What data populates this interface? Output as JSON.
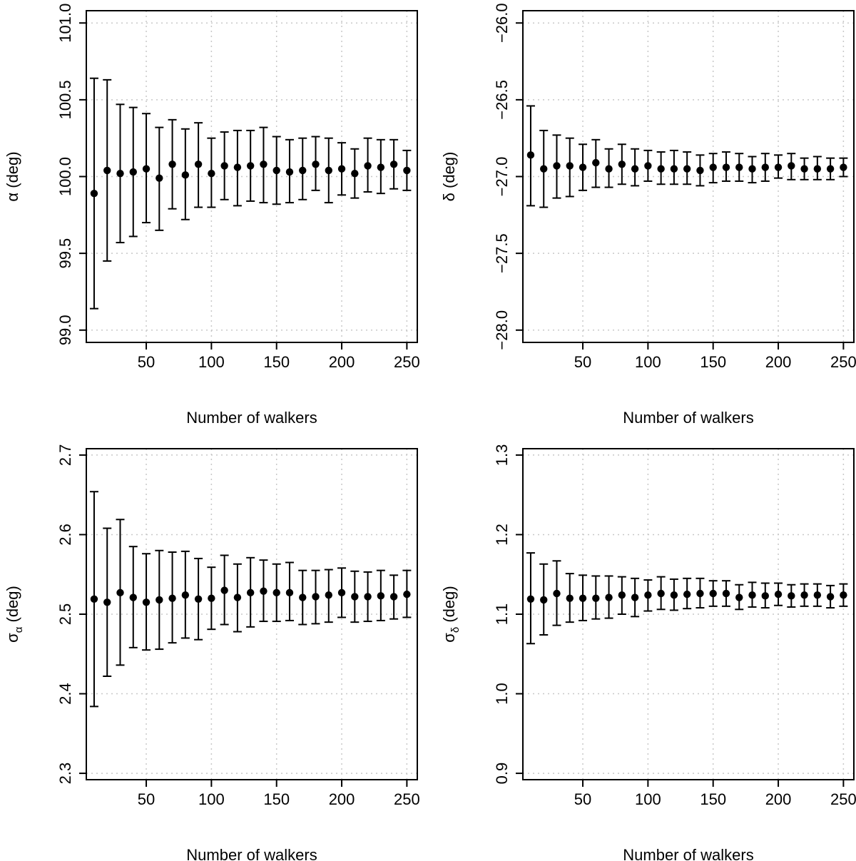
{
  "chart_data": [
    {
      "type": "scatter",
      "panel": "top-left",
      "xlabel": "Number of walkers",
      "ylabel": "α (deg)",
      "ylabel_symbol": "α",
      "ylabel_sub": "",
      "ylabel_unit": " (deg)",
      "xlim": [
        4,
        258
      ],
      "ylim": [
        98.92,
        101.08
      ],
      "xticks": [
        50,
        100,
        150,
        200,
        250
      ],
      "xtick_labels": [
        "50",
        "100",
        "150",
        "200",
        "250"
      ],
      "yticks": [
        99.0,
        99.5,
        100.0,
        100.5,
        101.0
      ],
      "ytick_labels": [
        "99.0",
        "99.5",
        "100.0",
        "100.5",
        "101.0"
      ],
      "grid": true,
      "x": [
        10,
        20,
        30,
        40,
        50,
        60,
        70,
        80,
        90,
        100,
        110,
        120,
        130,
        140,
        150,
        160,
        170,
        180,
        190,
        200,
        210,
        220,
        230,
        240,
        250
      ],
      "y": [
        99.89,
        100.04,
        100.02,
        100.03,
        100.05,
        99.99,
        100.08,
        100.01,
        100.08,
        100.02,
        100.07,
        100.06,
        100.07,
        100.08,
        100.04,
        100.03,
        100.04,
        100.08,
        100.04,
        100.05,
        100.02,
        100.07,
        100.06,
        100.08,
        100.04
      ],
      "y_lower": [
        99.14,
        99.45,
        99.57,
        99.61,
        99.7,
        99.65,
        99.79,
        99.72,
        99.8,
        99.8,
        99.85,
        99.81,
        99.84,
        99.83,
        99.82,
        99.83,
        99.85,
        99.91,
        99.83,
        99.88,
        99.86,
        99.9,
        99.89,
        99.92,
        99.91
      ],
      "y_upper": [
        100.64,
        100.63,
        100.47,
        100.45,
        100.41,
        100.32,
        100.37,
        100.31,
        100.35,
        100.25,
        100.29,
        100.3,
        100.3,
        100.32,
        100.26,
        100.24,
        100.25,
        100.26,
        100.25,
        100.22,
        100.18,
        100.25,
        100.24,
        100.24,
        100.17
      ]
    },
    {
      "type": "scatter",
      "panel": "top-right",
      "xlabel": "Number of walkers",
      "ylabel": "δ (deg)",
      "ylabel_symbol": "δ",
      "ylabel_sub": "",
      "ylabel_unit": " (deg)",
      "xlim": [
        4,
        258
      ],
      "ylim": [
        -28.08,
        -25.92
      ],
      "xticks": [
        50,
        100,
        150,
        200,
        250
      ],
      "xtick_labels": [
        "50",
        "100",
        "150",
        "200",
        "250"
      ],
      "yticks": [
        -28.0,
        -27.5,
        -27.0,
        -26.5,
        -26.0
      ],
      "ytick_labels": [
        "−28.0",
        "−27.5",
        "−27.0",
        "−26.5",
        "−26.0"
      ],
      "grid": true,
      "x": [
        10,
        20,
        30,
        40,
        50,
        60,
        70,
        80,
        90,
        100,
        110,
        120,
        130,
        140,
        150,
        160,
        170,
        180,
        190,
        200,
        210,
        220,
        230,
        240,
        250
      ],
      "y": [
        -26.86,
        -26.95,
        -26.93,
        -26.93,
        -26.94,
        -26.91,
        -26.95,
        -26.92,
        -26.95,
        -26.93,
        -26.95,
        -26.95,
        -26.95,
        -26.96,
        -26.94,
        -26.94,
        -26.94,
        -26.95,
        -26.94,
        -26.94,
        -26.93,
        -26.95,
        -26.95,
        -26.95,
        -26.94
      ],
      "y_lower": [
        -27.19,
        -27.2,
        -27.14,
        -27.13,
        -27.09,
        -27.07,
        -27.07,
        -27.05,
        -27.06,
        -27.03,
        -27.05,
        -27.05,
        -27.05,
        -27.06,
        -27.04,
        -27.03,
        -27.03,
        -27.04,
        -27.03,
        -27.01,
        -27.02,
        -27.02,
        -27.02,
        -27.02,
        -27.0
      ],
      "y_upper": [
        -26.54,
        -26.7,
        -26.73,
        -26.75,
        -26.79,
        -26.76,
        -26.82,
        -26.79,
        -26.82,
        -26.83,
        -26.84,
        -26.83,
        -26.84,
        -26.86,
        -26.85,
        -26.84,
        -26.85,
        -26.87,
        -26.85,
        -26.86,
        -26.85,
        -26.88,
        -26.87,
        -26.88,
        -26.88
      ]
    },
    {
      "type": "scatter",
      "panel": "bottom-left",
      "xlabel": "Number of walkers",
      "ylabel": "σα (deg)",
      "ylabel_symbol": "σ",
      "ylabel_sub": "α",
      "ylabel_unit": " (deg)",
      "xlim": [
        4,
        258
      ],
      "ylim": [
        2.292,
        2.708
      ],
      "xticks": [
        50,
        100,
        150,
        200,
        250
      ],
      "xtick_labels": [
        "50",
        "100",
        "150",
        "200",
        "250"
      ],
      "yticks": [
        2.3,
        2.4,
        2.5,
        2.6,
        2.7
      ],
      "ytick_labels": [
        "2.3",
        "2.4",
        "2.5",
        "2.6",
        "2.7"
      ],
      "grid": true,
      "x": [
        10,
        20,
        30,
        40,
        50,
        60,
        70,
        80,
        90,
        100,
        110,
        120,
        130,
        140,
        150,
        160,
        170,
        180,
        190,
        200,
        210,
        220,
        230,
        240,
        250
      ],
      "y": [
        2.519,
        2.515,
        2.527,
        2.521,
        2.515,
        2.518,
        2.52,
        2.524,
        2.519,
        2.52,
        2.53,
        2.521,
        2.527,
        2.529,
        2.527,
        2.527,
        2.521,
        2.522,
        2.524,
        2.527,
        2.522,
        2.522,
        2.523,
        2.522,
        2.525
      ],
      "y_lower": [
        2.384,
        2.422,
        2.436,
        2.458,
        2.455,
        2.456,
        2.464,
        2.47,
        2.468,
        2.481,
        2.487,
        2.478,
        2.484,
        2.491,
        2.491,
        2.492,
        2.487,
        2.488,
        2.49,
        2.496,
        2.49,
        2.491,
        2.492,
        2.494,
        2.496
      ],
      "y_upper": [
        2.654,
        2.608,
        2.619,
        2.585,
        2.576,
        2.58,
        2.578,
        2.579,
        2.57,
        2.559,
        2.574,
        2.563,
        2.571,
        2.568,
        2.563,
        2.565,
        2.555,
        2.555,
        2.556,
        2.558,
        2.554,
        2.553,
        2.555,
        2.549,
        2.555
      ]
    },
    {
      "type": "scatter",
      "panel": "bottom-right",
      "xlabel": "Number of walkers",
      "ylabel": "σδ (deg)",
      "ylabel_symbol": "σ",
      "ylabel_sub": "δ",
      "ylabel_unit": " (deg)",
      "xlim": [
        4,
        258
      ],
      "ylim": [
        0.892,
        1.308
      ],
      "xticks": [
        50,
        100,
        150,
        200,
        250
      ],
      "xtick_labels": [
        "50",
        "100",
        "150",
        "200",
        "250"
      ],
      "yticks": [
        0.9,
        1.0,
        1.1,
        1.2,
        1.3
      ],
      "ytick_labels": [
        "0.9",
        "1.0",
        "1.1",
        "1.2",
        "1.3"
      ],
      "grid": true,
      "x": [
        10,
        20,
        30,
        40,
        50,
        60,
        70,
        80,
        90,
        100,
        110,
        120,
        130,
        140,
        150,
        160,
        170,
        180,
        190,
        200,
        210,
        220,
        230,
        240,
        250
      ],
      "y": [
        1.119,
        1.118,
        1.126,
        1.12,
        1.12,
        1.12,
        1.121,
        1.124,
        1.121,
        1.124,
        1.126,
        1.124,
        1.125,
        1.126,
        1.126,
        1.126,
        1.121,
        1.124,
        1.123,
        1.125,
        1.123,
        1.124,
        1.124,
        1.122,
        1.124
      ],
      "y_lower": [
        1.063,
        1.074,
        1.086,
        1.09,
        1.092,
        1.094,
        1.095,
        1.1,
        1.097,
        1.104,
        1.106,
        1.105,
        1.107,
        1.108,
        1.11,
        1.11,
        1.106,
        1.109,
        1.108,
        1.111,
        1.109,
        1.11,
        1.11,
        1.108,
        1.11
      ],
      "y_upper": [
        1.177,
        1.163,
        1.167,
        1.151,
        1.149,
        1.148,
        1.148,
        1.147,
        1.145,
        1.143,
        1.147,
        1.144,
        1.145,
        1.145,
        1.142,
        1.142,
        1.137,
        1.14,
        1.139,
        1.139,
        1.137,
        1.138,
        1.138,
        1.136,
        1.138
      ]
    }
  ]
}
